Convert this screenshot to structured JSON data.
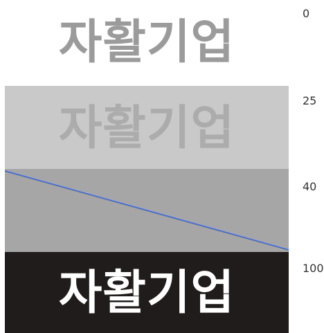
{
  "word": "자활기업",
  "levels": [
    {
      "label": "0",
      "background": "#ffffff",
      "text_color": "#9b9b9b",
      "shows_word": true
    },
    {
      "label": "25",
      "background": "#c9c9c9",
      "text_color": "#acacac",
      "shows_word": true
    },
    {
      "label": "40",
      "background": "#a6a6a6",
      "text_color": "#a6a6a6",
      "shows_word": false
    },
    {
      "label": "100",
      "background": "#1f1c1b",
      "text_color": "#ffffff",
      "shows_word": true
    }
  ],
  "accent_line_color": "#4a6fcf"
}
